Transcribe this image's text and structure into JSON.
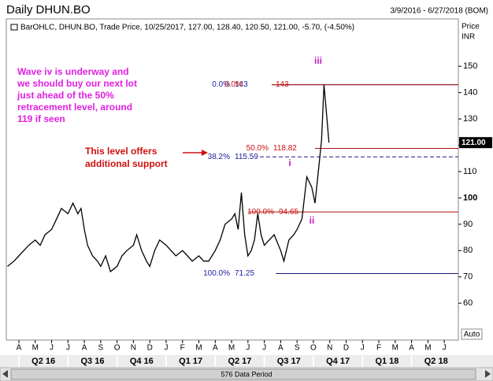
{
  "chart_data": {
    "type": "line",
    "title": "Daily DHUN.BO",
    "subtitle": "3/9/2016 - 6/27/2018 (BOM)",
    "legend_text": "BarOHLC, DHUN.BO, Trade Price, 10/25/2017, 127.00, 128.40, 120.50, 121.00, -5.70, (-4.50%)",
    "y_axis_label": "Price",
    "y_axis_unit": "INR",
    "months": [
      "A",
      "M",
      "J",
      "J",
      "A",
      "S",
      "O",
      "N",
      "D",
      "J",
      "F",
      "M",
      "A",
      "M",
      "J",
      "J",
      "A",
      "S",
      "O",
      "N",
      "D",
      "J",
      "F",
      "M",
      "A",
      "M",
      "J"
    ],
    "quarters": [
      "Q2 16",
      "Q3 16",
      "Q4 16",
      "Q1 17",
      "Q2 17",
      "Q3 17",
      "Q4 17",
      "Q1 18",
      "Q2 18"
    ],
    "x": [
      -0.7,
      -0.3,
      0,
      0.3,
      0.6,
      1,
      1.3,
      1.6,
      2,
      2.3,
      2.6,
      3,
      3.3,
      3.6,
      3.8,
      4,
      4.2,
      4.5,
      4.8,
      5,
      5.3,
      5.6,
      6,
      6.3,
      6.6,
      7,
      7.2,
      7.5,
      7.8,
      8,
      8.3,
      8.6,
      9,
      9.3,
      9.6,
      10,
      10.3,
      10.6,
      11,
      11.3,
      11.6,
      12,
      12.3,
      12.6,
      13,
      13.2,
      13.4,
      13.6,
      13.8,
      14,
      14.2,
      14.4,
      14.6,
      14.8,
      15,
      15.3,
      15.6,
      16,
      16.2,
      16.5,
      16.8,
      17,
      17.3,
      17.6,
      17.9,
      18.1,
      18.3,
      18.5,
      18.65,
      18.8,
      18.95
    ],
    "values": [
      74,
      76,
      78,
      80,
      82,
      84,
      82,
      86,
      88,
      92,
      96,
      94,
      98,
      94,
      96,
      88,
      82,
      78,
      76,
      74,
      78,
      72,
      74,
      78,
      80,
      82,
      86,
      80,
      76,
      74,
      80,
      84,
      82,
      80,
      78,
      80,
      78,
      76,
      78,
      76,
      76,
      80,
      84,
      90,
      92,
      94,
      88,
      102,
      86,
      78,
      80,
      84,
      94,
      86,
      82,
      84,
      86,
      80,
      76,
      84,
      86,
      88,
      92,
      108,
      104,
      98,
      110,
      122,
      143,
      132,
      121
    ],
    "color": "#000000",
    "xlim": [
      -0.77,
      26.86
    ],
    "ylim": [
      46,
      168
    ],
    "yticks": [
      60,
      70,
      80,
      90,
      100,
      110,
      120,
      130,
      140,
      150
    ],
    "last_price": {
      "value": 121,
      "label": "121.00"
    },
    "fib_blue": [
      {
        "pct": "0.0%",
        "value": 143
      },
      {
        "pct": "38.2%",
        "value": 115.59
      },
      {
        "pct": "100.0%",
        "value": 71.25
      }
    ],
    "fib_red": [
      {
        "pct": "0.0%",
        "value": 143
      },
      {
        "pct": "50.0%",
        "value": 118.82
      },
      {
        "pct": "100.0%",
        "value": 94.65
      }
    ],
    "annotations": {
      "wave_note": [
        "Wave iv is underway and",
        "we should buy our next lot",
        "just ahead of the 50%",
        "retracement level, around",
        "119 if seen"
      ],
      "support_note": [
        "This level offers",
        "additional support"
      ],
      "wave_iii": "iii",
      "wave_i": "i",
      "wave_ii": "ii"
    },
    "scale_mode": "Auto",
    "data_period": "576 Data Period"
  }
}
